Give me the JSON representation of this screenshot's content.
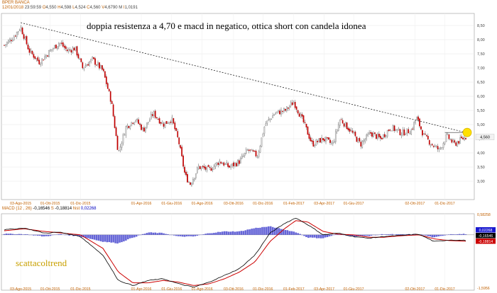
{
  "header": {
    "ticker": "BPER BANCA",
    "date": "12/01/2018",
    "time": "23:59:59",
    "open_label": "O",
    "open": "4,550",
    "high_label": "H",
    "high": "4,598",
    "low_label": "L",
    "low": "4,524",
    "close_label": "C",
    "close": "4,560",
    "volume_label": "V",
    "volume": "4,6790 M",
    "i_label": "I",
    "i_value": "1,0191"
  },
  "annotation": "doppia resistenza a 4,70 e macd in negatico, ottica short con candela idonea",
  "watermark": "scattacoltrend",
  "colors": {
    "up_candle": "#d7d7d7",
    "down_candle": "#c00000",
    "wick": "#555555",
    "macd_line": "#000000",
    "signal_line": "#cc0000",
    "histogram": "#4a4ad0",
    "highlight": "#ffe000",
    "header_orange": "#c06000",
    "header_blue": "#0000c0"
  },
  "macd_header": {
    "label": "MACD",
    "params": "(12 , 26)",
    "macd_value": "-0,16546",
    "s_label": "S",
    "s_value": "-0,18814",
    "hist_label": "hist",
    "hist_value": "0,02268"
  },
  "chart_data": [
    {
      "type": "candlestick",
      "title": "BPER BANCA",
      "y_ticks": [
        "3,00",
        "3,50",
        "4,00",
        "4,50",
        "5,00",
        "5,50",
        "6,00",
        "6,50",
        "7,00",
        "7,50",
        "8,00",
        "8,50"
      ],
      "ylim": [
        2.4,
        8.85
      ],
      "x_ticks": [
        "03-Ago-2015",
        "01-Ott-2015",
        "01-Dic-2015",
        "01-Apr-2016",
        "01-Giu-2016",
        "01-Ago-2016",
        "03-Ott-2016",
        "01-Dic-2016",
        "01-Feb-2017",
        "03-Apr-2017",
        "01-Giu-2017",
        "02-Ott-2017",
        "01-Dic-2017"
      ],
      "last_price_label": "4,560",
      "last_price": 4.56,
      "trendline": {
        "style": "dashed",
        "from_price": 8.6,
        "to_price": 4.72
      },
      "close_series": [
        {
          "x": "2015-07-01",
          "y": 7.8
        },
        {
          "x": "2015-07-20",
          "y": 8.1
        },
        {
          "x": "2015-08-03",
          "y": 8.45
        },
        {
          "x": "2015-08-20",
          "y": 7.6
        },
        {
          "x": "2015-09-10",
          "y": 7.2
        },
        {
          "x": "2015-10-01",
          "y": 7.6
        },
        {
          "x": "2015-10-20",
          "y": 7.9
        },
        {
          "x": "2015-11-05",
          "y": 7.6
        },
        {
          "x": "2015-11-20",
          "y": 7.7
        },
        {
          "x": "2015-12-05",
          "y": 7.0
        },
        {
          "x": "2015-12-25",
          "y": 7.3
        },
        {
          "x": "2016-01-15",
          "y": 6.9
        },
        {
          "x": "2016-02-01",
          "y": 5.8
        },
        {
          "x": "2016-02-15",
          "y": 4.0
        },
        {
          "x": "2016-03-01",
          "y": 4.9
        },
        {
          "x": "2016-03-20",
          "y": 5.2
        },
        {
          "x": "2016-04-05",
          "y": 4.8
        },
        {
          "x": "2016-04-25",
          "y": 5.4
        },
        {
          "x": "2016-05-15",
          "y": 5.0
        },
        {
          "x": "2016-06-01",
          "y": 5.2
        },
        {
          "x": "2016-06-15",
          "y": 4.4
        },
        {
          "x": "2016-06-28",
          "y": 3.2
        },
        {
          "x": "2016-07-08",
          "y": 2.9
        },
        {
          "x": "2016-07-25",
          "y": 3.5
        },
        {
          "x": "2016-08-15",
          "y": 3.4
        },
        {
          "x": "2016-09-05",
          "y": 3.7
        },
        {
          "x": "2016-09-25",
          "y": 3.5
        },
        {
          "x": "2016-10-15",
          "y": 3.7
        },
        {
          "x": "2016-11-01",
          "y": 4.1
        },
        {
          "x": "2016-11-20",
          "y": 3.9
        },
        {
          "x": "2016-12-05",
          "y": 5.0
        },
        {
          "x": "2016-12-25",
          "y": 5.4
        },
        {
          "x": "2017-01-15",
          "y": 5.5
        },
        {
          "x": "2017-02-01",
          "y": 5.8
        },
        {
          "x": "2017-02-20",
          "y": 5.1
        },
        {
          "x": "2017-03-10",
          "y": 4.3
        },
        {
          "x": "2017-04-01",
          "y": 4.5
        },
        {
          "x": "2017-04-20",
          "y": 4.3
        },
        {
          "x": "2017-05-05",
          "y": 5.2
        },
        {
          "x": "2017-05-25",
          "y": 4.8
        },
        {
          "x": "2017-06-15",
          "y": 4.3
        },
        {
          "x": "2017-07-05",
          "y": 4.7
        },
        {
          "x": "2017-07-25",
          "y": 4.5
        },
        {
          "x": "2017-08-15",
          "y": 4.9
        },
        {
          "x": "2017-09-05",
          "y": 4.7
        },
        {
          "x": "2017-09-25",
          "y": 4.8
        },
        {
          "x": "2017-10-05",
          "y": 5.25
        },
        {
          "x": "2017-10-20",
          "y": 4.6
        },
        {
          "x": "2017-11-05",
          "y": 4.3
        },
        {
          "x": "2017-11-20",
          "y": 4.1
        },
        {
          "x": "2017-12-05",
          "y": 4.6
        },
        {
          "x": "2017-12-20",
          "y": 4.3
        },
        {
          "x": "2018-01-05",
          "y": 4.5
        },
        {
          "x": "2018-01-12",
          "y": 4.56
        }
      ]
    },
    {
      "type": "line",
      "title": "MACD",
      "y_ticks": [
        "0,58258",
        "-1,5956"
      ],
      "ylim": [
        -1.5956,
        0.58258
      ],
      "x_ticks": [
        "03-Ago-2015",
        "01-Ott-2015",
        "01-Dic-2015",
        "01-Apr-2016",
        "01-Giu-2016",
        "01-Ago-2016",
        "03-Ott-2016",
        "01-Dic-2016",
        "01-Feb-2017",
        "03-Apr-2017",
        "01-Giu-2017",
        "02-Ott-2017",
        "01-Dic-2017"
      ],
      "value_labels": [
        "0,02268",
        "-0,16546",
        "-0,18814"
      ],
      "macd": [
        {
          "x": "2015-07-01",
          "y": 0.15
        },
        {
          "x": "2015-08-10",
          "y": 0.2
        },
        {
          "x": "2015-09-20",
          "y": 0.05
        },
        {
          "x": "2015-10-20",
          "y": 0.08
        },
        {
          "x": "2015-12-01",
          "y": -0.05
        },
        {
          "x": "2016-01-15",
          "y": -0.6
        },
        {
          "x": "2016-02-15",
          "y": -1.35
        },
        {
          "x": "2016-03-15",
          "y": -1.5
        },
        {
          "x": "2016-04-15",
          "y": -1.35
        },
        {
          "x": "2016-05-15",
          "y": -1.3
        },
        {
          "x": "2016-06-15",
          "y": -1.45
        },
        {
          "x": "2016-07-15",
          "y": -1.55
        },
        {
          "x": "2016-08-15",
          "y": -1.4
        },
        {
          "x": "2016-09-15",
          "y": -1.2
        },
        {
          "x": "2016-10-15",
          "y": -1.0
        },
        {
          "x": "2016-11-15",
          "y": -0.6
        },
        {
          "x": "2016-12-15",
          "y": 0.05
        },
        {
          "x": "2017-01-15",
          "y": 0.35
        },
        {
          "x": "2017-02-05",
          "y": 0.5
        },
        {
          "x": "2017-03-01",
          "y": 0.3
        },
        {
          "x": "2017-04-01",
          "y": 0.0
        },
        {
          "x": "2017-05-01",
          "y": 0.05
        },
        {
          "x": "2017-06-01",
          "y": -0.05
        },
        {
          "x": "2017-07-01",
          "y": -0.1
        },
        {
          "x": "2017-08-01",
          "y": -0.05
        },
        {
          "x": "2017-09-01",
          "y": -0.02
        },
        {
          "x": "2017-10-10",
          "y": 0.02
        },
        {
          "x": "2017-11-10",
          "y": -0.2
        },
        {
          "x": "2017-12-10",
          "y": -0.15
        },
        {
          "x": "2018-01-12",
          "y": -0.165
        }
      ],
      "signal": [
        {
          "x": "2015-07-01",
          "y": 0.12
        },
        {
          "x": "2015-08-10",
          "y": 0.18
        },
        {
          "x": "2015-09-20",
          "y": 0.1
        },
        {
          "x": "2015-10-20",
          "y": 0.06
        },
        {
          "x": "2015-12-01",
          "y": 0.0
        },
        {
          "x": "2016-01-15",
          "y": -0.4
        },
        {
          "x": "2016-02-15",
          "y": -1.1
        },
        {
          "x": "2016-03-15",
          "y": -1.42
        },
        {
          "x": "2016-04-15",
          "y": -1.42
        },
        {
          "x": "2016-05-15",
          "y": -1.35
        },
        {
          "x": "2016-06-15",
          "y": -1.4
        },
        {
          "x": "2016-07-15",
          "y": -1.5
        },
        {
          "x": "2016-08-15",
          "y": -1.45
        },
        {
          "x": "2016-09-15",
          "y": -1.3
        },
        {
          "x": "2016-10-15",
          "y": -1.1
        },
        {
          "x": "2016-11-15",
          "y": -0.8
        },
        {
          "x": "2016-12-15",
          "y": -0.2
        },
        {
          "x": "2017-01-15",
          "y": 0.2
        },
        {
          "x": "2017-02-05",
          "y": 0.42
        },
        {
          "x": "2017-03-01",
          "y": 0.38
        },
        {
          "x": "2017-04-01",
          "y": 0.1
        },
        {
          "x": "2017-05-01",
          "y": 0.02
        },
        {
          "x": "2017-06-01",
          "y": 0.0
        },
        {
          "x": "2017-07-01",
          "y": -0.07
        },
        {
          "x": "2017-08-01",
          "y": -0.07
        },
        {
          "x": "2017-09-01",
          "y": -0.03
        },
        {
          "x": "2017-10-10",
          "y": 0.0
        },
        {
          "x": "2017-11-10",
          "y": -0.12
        },
        {
          "x": "2017-12-10",
          "y": -0.17
        },
        {
          "x": "2018-01-12",
          "y": -0.188
        }
      ]
    }
  ]
}
